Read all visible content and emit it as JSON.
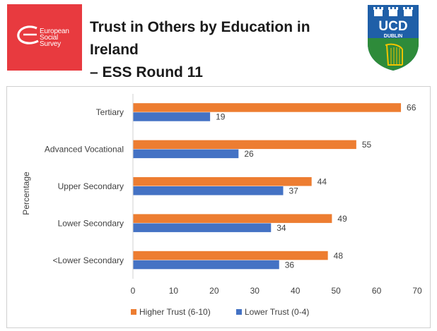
{
  "header": {
    "title_line1": "Trust in Others by Education in Ireland",
    "title_line2": "– ESS Round 11",
    "ess_logo_text": [
      "European",
      "Social",
      "Survey"
    ],
    "ucd_logo_text": "UCD",
    "ucd_logo_subtext": "DUBLIN"
  },
  "colors": {
    "higher_trust": "#ed7d31",
    "lower_trust": "#4472c4",
    "ess_red": "#e83a3f",
    "ucd_blue": "#1f5fa8",
    "ucd_green": "#2e8b3a",
    "ucd_gold": "#f2c300"
  },
  "chart_data": {
    "type": "bar",
    "orientation": "horizontal",
    "title": "",
    "xlabel": "",
    "ylabel": "Percentage",
    "categories": [
      "Tertiary",
      "Advanced Vocational",
      "Upper Secondary",
      "Lower Secondary",
      "<Lower Secondary"
    ],
    "series": [
      {
        "name": "Higher Trust (6-10)",
        "values": [
          66,
          55,
          44,
          49,
          48
        ]
      },
      {
        "name": "Lower Trust (0-4)",
        "values": [
          19,
          26,
          37,
          34,
          36
        ]
      }
    ],
    "xlim": [
      0,
      70
    ],
    "xticks": [
      0,
      10,
      20,
      30,
      40,
      50,
      60,
      70
    ],
    "grid": false,
    "data_labels": true,
    "legend_position": "bottom"
  }
}
